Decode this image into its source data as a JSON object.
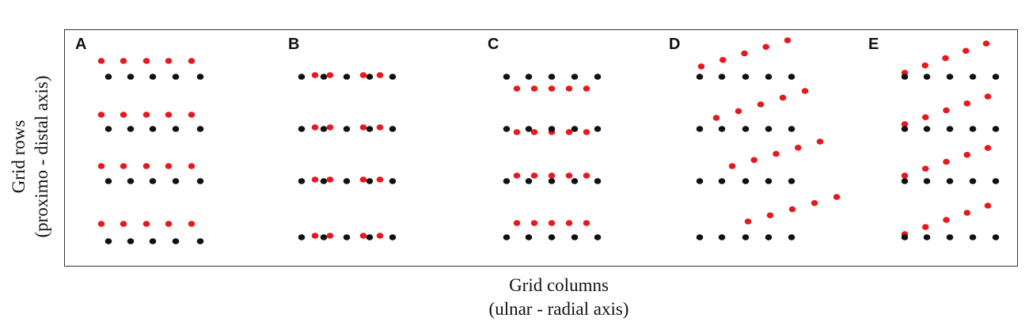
{
  "figure": {
    "y_axis": {
      "line1": "Grid rows",
      "line2": "(proximo - distal axis)"
    },
    "x_axis": {
      "line1": "Grid columns",
      "line2": "(ulnar - radial axis)"
    },
    "colors": {
      "reference": "#111111",
      "displaced": "#e8181c"
    }
  },
  "panels": [
    {
      "label": "A"
    },
    {
      "label": "B"
    },
    {
      "label": "C"
    },
    {
      "label": "D"
    },
    {
      "label": "E"
    }
  ]
}
